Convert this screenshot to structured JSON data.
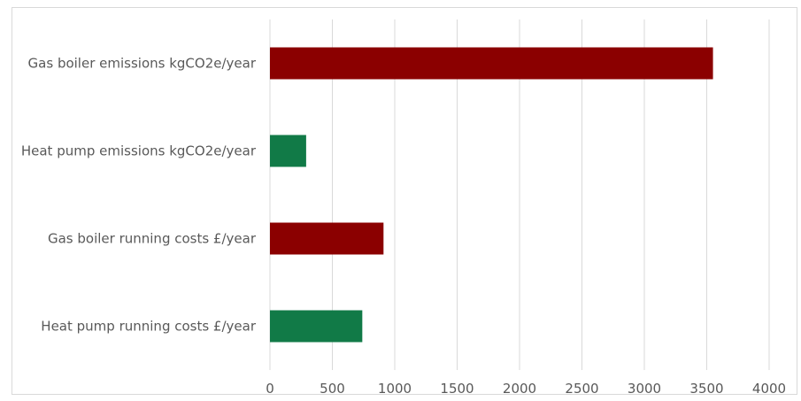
{
  "chart_data": {
    "type": "bar",
    "orientation": "horizontal",
    "title": "",
    "xlabel": "",
    "ylabel": "",
    "categories": [
      "Gas boiler emissions kgCO2e/year",
      "Heat pump emissions kgCO2e/year",
      "Gas boiler running costs £/year",
      "Heat pump running costs £/year"
    ],
    "values": [
      3550,
      290,
      910,
      740
    ],
    "bar_colors": [
      "#8B0000",
      "#117A47",
      "#8B0000",
      "#117A47"
    ],
    "xlim": [
      0,
      4000
    ],
    "xticks": [
      "0",
      "500",
      "1000",
      "1500",
      "2000",
      "2500",
      "3000",
      "3500",
      "4000"
    ],
    "grid": "vertical",
    "legend": "none"
  }
}
